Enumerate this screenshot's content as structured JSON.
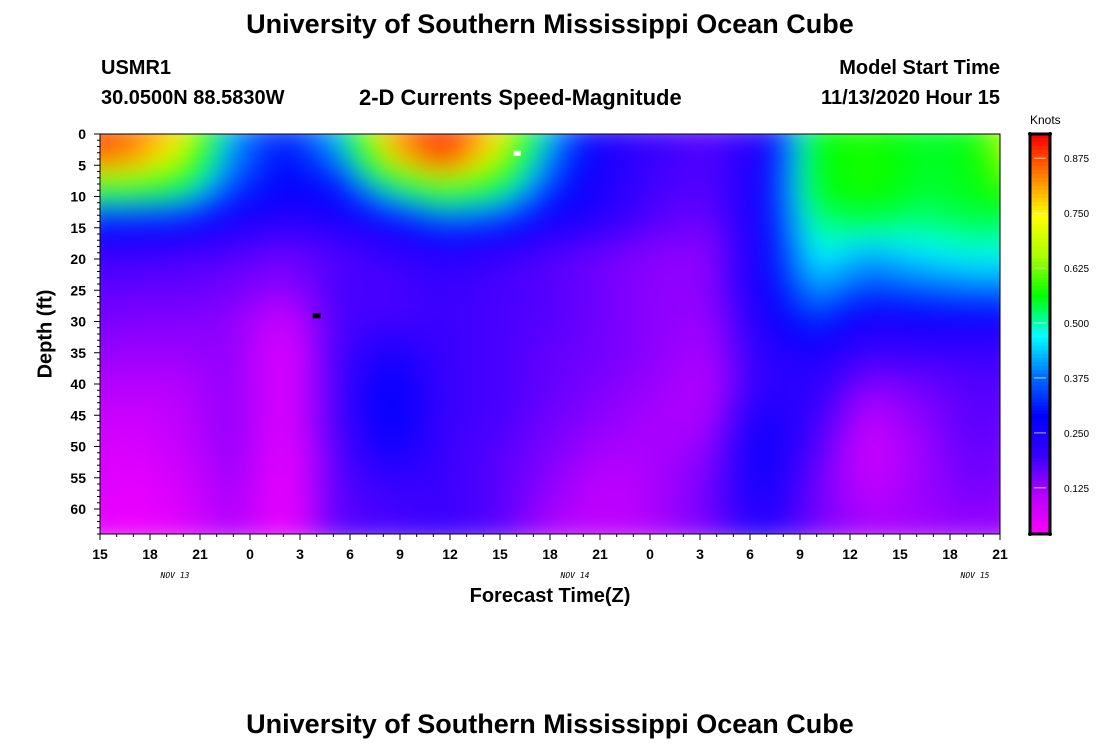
{
  "header": {
    "title": "University of Southern Mississippi Ocean Cube",
    "station": "USMR1",
    "coords": "30.0500N 88.5830W",
    "product": "2-D Currents Speed-Magnitude",
    "model_label": "Model Start Time",
    "model_time": "11/13/2020 Hour 15"
  },
  "footer": {
    "title": "University of Southern Mississippi Ocean Cube"
  },
  "colors": {
    "scale": [
      "#ff00ff",
      "#b800ff",
      "#3600ff",
      "#0000ff",
      "#0070ff",
      "#00ffff",
      "#00ff00",
      "#aaff00",
      "#ffff00",
      "#ff8000",
      "#ff0000"
    ]
  },
  "chart_data": {
    "type": "heatmap",
    "xlabel": "Forecast Time(Z)",
    "ylabel": "Depth (ft)",
    "x_ticks": [
      "15",
      "18",
      "21",
      "0",
      "3",
      "6",
      "9",
      "12",
      "15",
      "18",
      "21",
      "0",
      "3",
      "6",
      "9",
      "12",
      "15",
      "18",
      "21"
    ],
    "date_labels": [
      {
        "text": "NOV 13",
        "at_hour": 4.5
      },
      {
        "text": "NOV 14",
        "at_hour": 28.5
      },
      {
        "text": "NOV 15",
        "at_hour": 52.5
      }
    ],
    "x_range_hours": [
      0,
      54
    ],
    "y_ticks": [
      0,
      5,
      10,
      15,
      20,
      25,
      30,
      35,
      40,
      45,
      50,
      55,
      60
    ],
    "y_range_ft": [
      0,
      64
    ],
    "colorbar": {
      "label": "Knots",
      "ticks": [
        "0.875",
        "0.750",
        "0.625",
        "0.500",
        "0.375",
        "0.250",
        "0.125"
      ],
      "tick_values": [
        0.875,
        0.75,
        0.625,
        0.5,
        0.375,
        0.25,
        0.125
      ],
      "range": [
        0.02,
        0.93
      ]
    },
    "hours": [
      0,
      3,
      6,
      9,
      12,
      15,
      18,
      21,
      24,
      27,
      30,
      33,
      36,
      39,
      42,
      45,
      48,
      51,
      54
    ],
    "depths": [
      0,
      5,
      10,
      15,
      20,
      25,
      30,
      35,
      40,
      45,
      50,
      55,
      60,
      64
    ],
    "values": [
      [
        0.9,
        0.86,
        0.8,
        0.42,
        0.32,
        0.46,
        0.84,
        0.9,
        0.8,
        0.45,
        0.25,
        0.2,
        0.18,
        0.22,
        0.56,
        0.58,
        0.55,
        0.56,
        0.78
      ],
      [
        0.88,
        0.86,
        0.72,
        0.4,
        0.3,
        0.4,
        0.78,
        0.92,
        0.72,
        0.4,
        0.24,
        0.2,
        0.18,
        0.24,
        0.56,
        0.58,
        0.55,
        0.56,
        0.72
      ],
      [
        0.58,
        0.6,
        0.55,
        0.35,
        0.28,
        0.3,
        0.5,
        0.62,
        0.55,
        0.34,
        0.24,
        0.19,
        0.18,
        0.26,
        0.56,
        0.58,
        0.55,
        0.56,
        0.62
      ],
      [
        0.32,
        0.3,
        0.3,
        0.25,
        0.22,
        0.24,
        0.28,
        0.36,
        0.34,
        0.26,
        0.22,
        0.18,
        0.16,
        0.26,
        0.52,
        0.54,
        0.52,
        0.54,
        0.52
      ],
      [
        0.2,
        0.2,
        0.19,
        0.18,
        0.16,
        0.18,
        0.2,
        0.22,
        0.2,
        0.18,
        0.16,
        0.14,
        0.14,
        0.26,
        0.48,
        0.42,
        0.46,
        0.48,
        0.48
      ],
      [
        0.18,
        0.17,
        0.17,
        0.16,
        0.14,
        0.19,
        0.19,
        0.2,
        0.19,
        0.18,
        0.16,
        0.14,
        0.14,
        0.26,
        0.42,
        0.36,
        0.38,
        0.4,
        0.4
      ],
      [
        0.16,
        0.15,
        0.15,
        0.14,
        0.08,
        0.19,
        0.19,
        0.2,
        0.19,
        0.18,
        0.16,
        0.14,
        0.13,
        0.24,
        0.34,
        0.24,
        0.26,
        0.26,
        0.26
      ],
      [
        0.14,
        0.13,
        0.13,
        0.14,
        0.06,
        0.19,
        0.25,
        0.2,
        0.19,
        0.17,
        0.16,
        0.14,
        0.12,
        0.22,
        0.24,
        0.2,
        0.2,
        0.2,
        0.2
      ],
      [
        0.12,
        0.11,
        0.11,
        0.14,
        0.06,
        0.19,
        0.3,
        0.2,
        0.19,
        0.17,
        0.15,
        0.13,
        0.11,
        0.22,
        0.22,
        0.14,
        0.16,
        0.18,
        0.18
      ],
      [
        0.1,
        0.08,
        0.1,
        0.14,
        0.06,
        0.19,
        0.3,
        0.2,
        0.19,
        0.16,
        0.14,
        0.12,
        0.12,
        0.26,
        0.2,
        0.1,
        0.14,
        0.18,
        0.16
      ],
      [
        0.09,
        0.06,
        0.09,
        0.14,
        0.05,
        0.18,
        0.26,
        0.2,
        0.18,
        0.15,
        0.12,
        0.12,
        0.14,
        0.28,
        0.18,
        0.08,
        0.13,
        0.17,
        0.15
      ],
      [
        0.08,
        0.05,
        0.07,
        0.13,
        0.04,
        0.18,
        0.2,
        0.2,
        0.18,
        0.14,
        0.1,
        0.12,
        0.16,
        0.26,
        0.16,
        0.1,
        0.13,
        0.16,
        0.14
      ],
      [
        0.07,
        0.04,
        0.06,
        0.12,
        0.04,
        0.18,
        0.19,
        0.2,
        0.18,
        0.12,
        0.1,
        0.12,
        0.16,
        0.24,
        0.16,
        0.12,
        0.13,
        0.14,
        0.13
      ],
      [
        0.06,
        0.04,
        0.05,
        0.12,
        0.04,
        0.18,
        0.19,
        0.2,
        0.18,
        0.12,
        0.1,
        0.12,
        0.15,
        0.22,
        0.15,
        0.12,
        0.12,
        0.13,
        0.12
      ]
    ]
  }
}
